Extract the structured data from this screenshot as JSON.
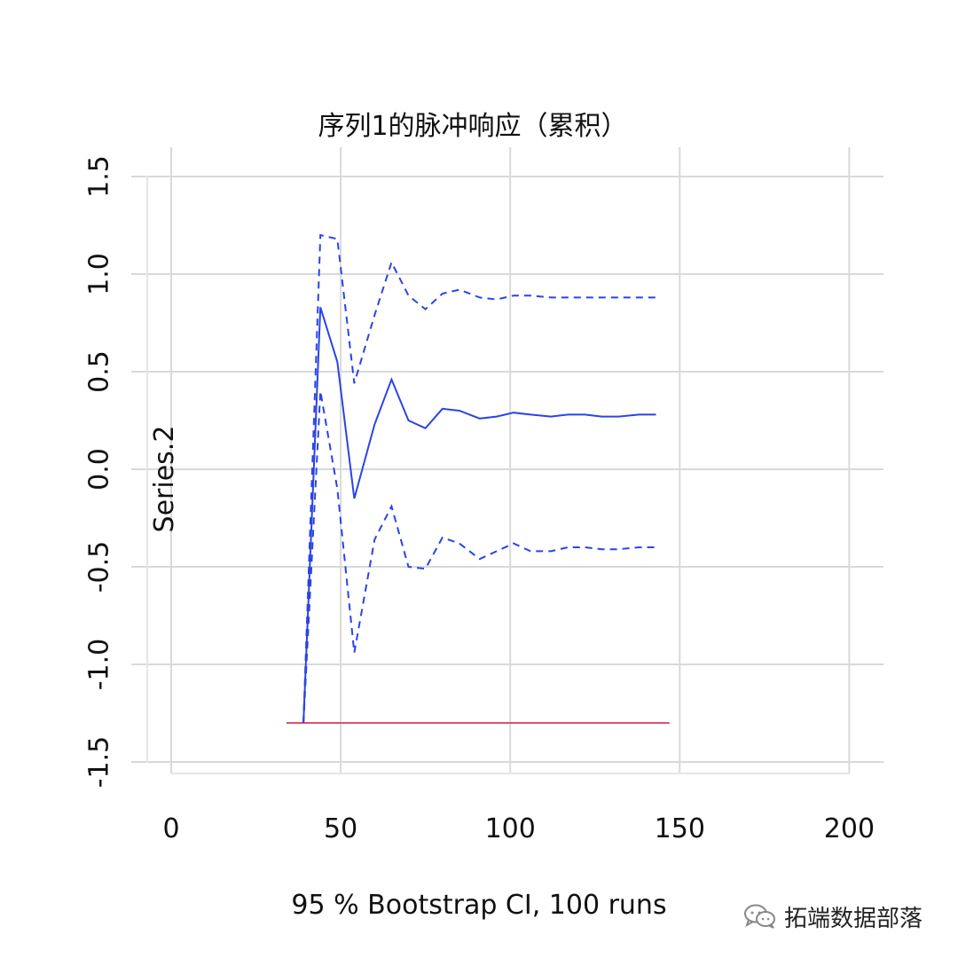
{
  "chart_data": {
    "type": "line",
    "title": "序列1的脉冲响应（累积）",
    "xlabel": "95 % Bootstrap CI,  100 runs",
    "ylabel": "Series.2",
    "xlim": [
      -7,
      210
    ],
    "ylim": [
      -1.5,
      1.5
    ],
    "xticks": [
      0,
      50,
      100,
      150,
      200
    ],
    "yticks": [
      -1.5,
      -1.0,
      -0.5,
      0.0,
      0.5,
      1.0,
      1.5
    ],
    "xtick_labels": [
      "0",
      "50",
      "100",
      "150",
      "200"
    ],
    "ytick_labels": [
      "-1.5",
      "-1.0",
      "-0.5",
      "0.0",
      "0.5",
      "1.0",
      "1.5"
    ],
    "grid": true,
    "series": [
      {
        "style": "solid",
        "color": "#2a44e6",
        "x": [
          39,
          44,
          49,
          54,
          60,
          65,
          70,
          75,
          80,
          85,
          91,
          96,
          101,
          106,
          112,
          117,
          122,
          127,
          132,
          138,
          143
        ],
        "y": [
          -1.3,
          0.83,
          0.55,
          -0.15,
          0.23,
          0.46,
          0.25,
          0.21,
          0.31,
          0.3,
          0.26,
          0.27,
          0.29,
          0.28,
          0.27,
          0.28,
          0.28,
          0.27,
          0.27,
          0.28,
          0.28
        ]
      },
      {
        "style": "dashed",
        "color": "#2a44e6",
        "x": [
          39,
          44,
          49,
          54,
          60,
          65,
          70,
          75,
          80,
          85,
          91,
          96,
          101,
          106,
          112,
          117,
          122,
          127,
          132,
          138,
          143
        ],
        "y": [
          -1.3,
          1.2,
          1.18,
          0.44,
          0.79,
          1.06,
          0.89,
          0.82,
          0.9,
          0.92,
          0.88,
          0.87,
          0.89,
          0.89,
          0.88,
          0.88,
          0.88,
          0.88,
          0.88,
          0.88,
          0.88
        ]
      },
      {
        "style": "dashed",
        "color": "#2a44e6",
        "x": [
          39,
          44,
          49,
          54,
          60,
          65,
          70,
          75,
          80,
          85,
          91,
          96,
          101,
          106,
          112,
          117,
          122,
          127,
          132,
          138,
          143
        ],
        "y": [
          -1.3,
          0.4,
          -0.1,
          -0.94,
          -0.36,
          -0.19,
          -0.5,
          -0.51,
          -0.35,
          -0.38,
          -0.46,
          -0.42,
          -0.38,
          -0.42,
          -0.42,
          -0.4,
          -0.4,
          -0.41,
          -0.41,
          -0.4,
          -0.4
        ]
      }
    ],
    "reference_line": {
      "y": -1.3,
      "x": [
        34,
        147
      ],
      "color": "#e0506a"
    }
  },
  "watermark": {
    "text": "拓端数据部落"
  }
}
